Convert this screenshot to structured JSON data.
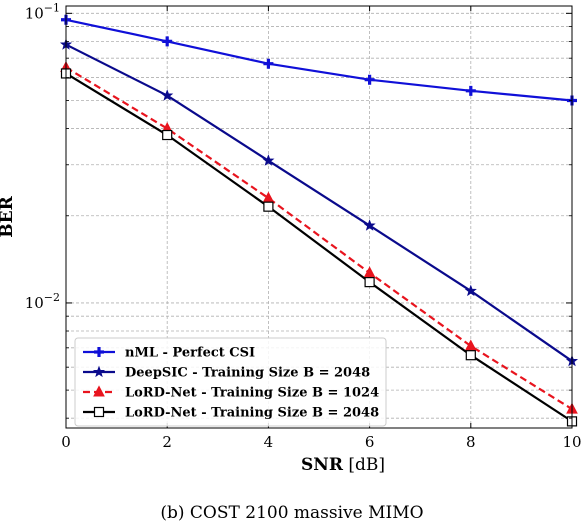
{
  "caption": "(b) COST 2100 massive MIMO",
  "chart_data": {
    "type": "line",
    "title": "",
    "xlabel": "SNR [dB]",
    "ylabel": "BER",
    "xlim": [
      0,
      10
    ],
    "ylim": [
      0.0037,
      0.106
    ],
    "y_scale": "log",
    "grid": true,
    "legend_position": "lower-left",
    "x_ticks": [
      0,
      2,
      4,
      6,
      8,
      10
    ],
    "y_major_ticks": [
      0.01,
      0.1
    ],
    "x": [
      0,
      2,
      4,
      6,
      8,
      10
    ],
    "series": [
      {
        "name": "nML - Perfect CSI",
        "values": [
          0.095,
          0.08,
          0.067,
          0.059,
          0.054,
          0.05
        ],
        "color": "#1010d8",
        "dash": "solid",
        "marker": "plus"
      },
      {
        "name": "DeepSIC - Training Size B = 2048",
        "values": [
          0.078,
          0.052,
          0.031,
          0.0185,
          0.011,
          0.0063
        ],
        "color": "#0a0a8c",
        "dash": "solid",
        "marker": "star"
      },
      {
        "name": "LoRD-Net - Training Size B = 1024",
        "values": [
          0.065,
          0.04,
          0.023,
          0.0127,
          0.0071,
          0.0043
        ],
        "color": "#e8141e",
        "dash": "dashed",
        "marker": "triangle"
      },
      {
        "name": "LoRD-Net - Training Size B = 2048",
        "values": [
          0.062,
          0.038,
          0.0215,
          0.0118,
          0.0066,
          0.0039
        ],
        "color": "#000000",
        "dash": "solid",
        "marker": "square"
      }
    ]
  }
}
